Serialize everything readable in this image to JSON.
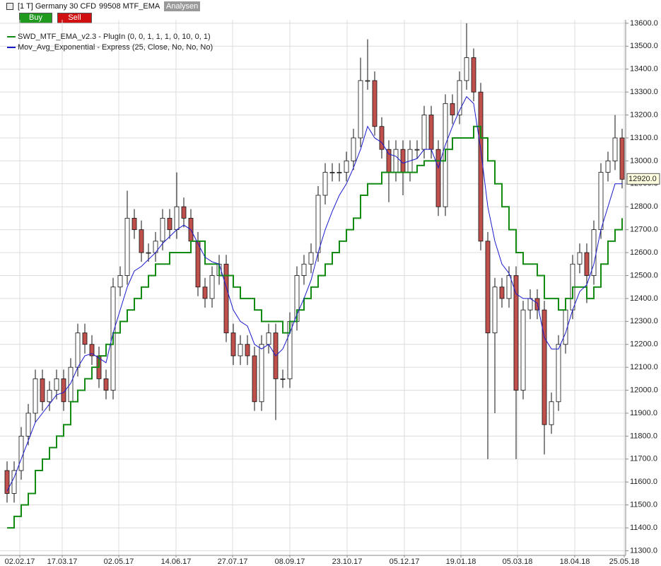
{
  "toolbar": {
    "instrument": "[1 T] Germany 30 CFD",
    "chart_name": "99508 MTF_EMA",
    "analysis": "Analysen",
    "buy": "Buy",
    "sell": "Sell"
  },
  "chart_data": {
    "type": "candlestick",
    "ylim": [
      11280,
      13615
    ],
    "xlim": [
      -1,
      87.5
    ],
    "yticks": [
      {
        "value": 11300,
        "label": "11300.0"
      },
      {
        "value": 11400,
        "label": "11400.0"
      },
      {
        "value": 11500,
        "label": "11500.0"
      },
      {
        "value": 11600,
        "label": "11600.0"
      },
      {
        "value": 11700,
        "label": "11700.0"
      },
      {
        "value": 11800,
        "label": "11800.0"
      },
      {
        "value": 11900,
        "label": "11900.0"
      },
      {
        "value": 12000,
        "label": "12000.0"
      },
      {
        "value": 12100,
        "label": "12100.0"
      },
      {
        "value": 12200,
        "label": "12200.0"
      },
      {
        "value": 12300,
        "label": "12300.0"
      },
      {
        "value": 12400,
        "label": "12400.0"
      },
      {
        "value": 12500,
        "label": "12500.0"
      },
      {
        "value": 12600,
        "label": "12600.0"
      },
      {
        "value": 12700,
        "label": "12700.0"
      },
      {
        "value": 12800,
        "label": "12800.0"
      },
      {
        "value": 12900,
        "label": "12900.0"
      },
      {
        "value": 13000,
        "label": "13000.0"
      },
      {
        "value": 13100,
        "label": "13100.0"
      },
      {
        "value": 13200,
        "label": "13200.0"
      },
      {
        "value": 13300,
        "label": "13300.0"
      },
      {
        "value": 13400,
        "label": "13400.0"
      },
      {
        "value": 13500,
        "label": "13500.0"
      },
      {
        "value": 13600,
        "label": "13600.0"
      }
    ],
    "xticks": [
      {
        "value": 1.8,
        "label": "02.02.17"
      },
      {
        "value": 7.8,
        "label": "17.03.17"
      },
      {
        "value": 15.8,
        "label": "02.05.17"
      },
      {
        "value": 23.9,
        "label": "14.06.17"
      },
      {
        "value": 31.9,
        "label": "27.07.17"
      },
      {
        "value": 40,
        "label": "08.09.17"
      },
      {
        "value": 48.1,
        "label": "23.10.17"
      },
      {
        "value": 56.2,
        "label": "05.12.17"
      },
      {
        "value": 64.2,
        "label": "19.01.18"
      },
      {
        "value": 72.2,
        "label": "05.03.18"
      },
      {
        "value": 80.3,
        "label": "18.04.18"
      },
      {
        "value": 87.3,
        "label": "25.05.18"
      }
    ],
    "grid": true,
    "ohlc": {
      "up_color": "#ffffff",
      "down_color": "#c0504d",
      "outline_color": "#111111",
      "open": [
        11650,
        11550,
        11650,
        11800,
        11900,
        12050,
        11950,
        12000,
        12050,
        11950,
        12100,
        12250,
        12200,
        12150,
        12050,
        12000,
        12450,
        12500,
        12750,
        12700,
        12600,
        12600,
        12650,
        12750,
        12700,
        12800,
        12750,
        12650,
        12450,
        12400,
        12500,
        12550,
        12250,
        12150,
        12200,
        12150,
        11950,
        12200,
        12250,
        12050,
        12050,
        12300,
        12500,
        12550,
        12600,
        12850,
        12950,
        12950,
        12950,
        13000,
        13100,
        13350,
        13350,
        13150,
        13050,
        12950,
        13050,
        12950,
        13050,
        13050,
        13200,
        13050,
        12800,
        13250,
        13200,
        13350,
        13450,
        13300,
        12650,
        12250,
        12450,
        12400,
        12500,
        12000,
        12350,
        12400,
        12350,
        11850,
        11950,
        12200,
        12350,
        12550,
        12600,
        12500,
        12700,
        12950,
        13000,
        13100
      ],
      "high": [
        11690,
        11690,
        11840,
        11940,
        12090,
        12090,
        12040,
        12090,
        12090,
        12140,
        12290,
        12290,
        12240,
        12190,
        12090,
        12490,
        12540,
        12870,
        12790,
        12740,
        12640,
        12690,
        12790,
        12790,
        12950,
        12840,
        12790,
        12690,
        12490,
        12540,
        12590,
        12590,
        12290,
        12240,
        12240,
        12190,
        12240,
        12290,
        12290,
        12090,
        12340,
        12540,
        12590,
        12640,
        12890,
        12990,
        12990,
        12990,
        13040,
        13140,
        13450,
        13530,
        13390,
        13190,
        13090,
        13090,
        13090,
        13090,
        13090,
        13240,
        13240,
        13090,
        13290,
        13290,
        13390,
        13600,
        13490,
        13340,
        12690,
        12490,
        12490,
        12540,
        12540,
        12390,
        12440,
        12440,
        12390,
        11990,
        12240,
        12390,
        12590,
        12640,
        12640,
        12740,
        12990,
        13040,
        13200,
        13140
      ],
      "low": [
        11510,
        11510,
        11610,
        11760,
        11860,
        11910,
        11910,
        11960,
        11910,
        11910,
        12060,
        12160,
        12110,
        12010,
        11960,
        11960,
        12410,
        12460,
        12660,
        12560,
        12560,
        12560,
        12610,
        12660,
        12660,
        12710,
        12610,
        12410,
        12360,
        12360,
        12460,
        12210,
        12110,
        12110,
        12110,
        11910,
        11910,
        12160,
        11870,
        12010,
        12010,
        12260,
        12460,
        12510,
        12560,
        12810,
        12910,
        12910,
        12910,
        12960,
        13060,
        13310,
        13110,
        13010,
        12820,
        12910,
        12850,
        12910,
        13010,
        13010,
        13010,
        12760,
        12760,
        13160,
        13160,
        13310,
        13260,
        12610,
        11700,
        11900,
        12360,
        12360,
        11700,
        11960,
        12310,
        12310,
        11720,
        11810,
        11910,
        12160,
        12310,
        12510,
        12380,
        12460,
        12660,
        12910,
        12960,
        12880
      ],
      "close": [
        11550,
        11650,
        11800,
        11900,
        12050,
        11950,
        12000,
        12050,
        11950,
        12100,
        12250,
        12200,
        12150,
        12050,
        12000,
        12450,
        12500,
        12750,
        12700,
        12600,
        12600,
        12650,
        12750,
        12700,
        12800,
        12750,
        12650,
        12450,
        12400,
        12500,
        12550,
        12250,
        12150,
        12200,
        12150,
        11950,
        12200,
        12250,
        12050,
        12050,
        12300,
        12500,
        12550,
        12600,
        12850,
        12950,
        12950,
        12950,
        13000,
        13100,
        13350,
        13350,
        13150,
        13050,
        12950,
        13050,
        12950,
        13050,
        13050,
        13200,
        13050,
        12800,
        13250,
        13200,
        13350,
        13450,
        13300,
        12650,
        12250,
        12450,
        12400,
        12500,
        12000,
        12350,
        12400,
        12350,
        11850,
        11950,
        12200,
        12350,
        12550,
        12600,
        12500,
        12700,
        12950,
        13000,
        13100,
        12920
      ]
    },
    "last_label": {
      "value": 12920,
      "label": "12920.0"
    },
    "series": [
      {
        "name": "SWD_MTF_EMA_v2.3 - PlugIn  (0, 0, 1, 1, 1, 0, 10, 0, 1)",
        "color": "#138a13",
        "step": true,
        "values": [
          11400,
          11450,
          11500,
          11550,
          11650,
          11700,
          11750,
          11800,
          11850,
          11950,
          12000,
          12050,
          12100,
          12150,
          12200,
          12250,
          12300,
          12350,
          12400,
          12450,
          12500,
          12550,
          12550,
          12600,
          12600,
          12600,
          12650,
          12650,
          12550,
          12550,
          12500,
          12500,
          12450,
          12400,
          12400,
          12350,
          12300,
          12300,
          12300,
          12250,
          12300,
          12350,
          12400,
          12450,
          12500,
          12550,
          12600,
          12650,
          12700,
          12750,
          12850,
          12900,
          12900,
          12950,
          12950,
          12950,
          12950,
          12950,
          12980,
          13000,
          13000,
          13000,
          13050,
          13100,
          13100,
          13100,
          13150,
          13100,
          13000,
          12900,
          12800,
          12700,
          12600,
          12550,
          12550,
          12500,
          12400,
          12400,
          12350,
          12400,
          12450,
          12450,
          12400,
          12450,
          12550,
          12650,
          12700,
          12750
        ]
      },
      {
        "name": "Mov_Avg_Exponential - Express  (25, Close, No, No, No)",
        "color": "#1a1acc",
        "step": false,
        "values": [
          11560,
          11620,
          11700,
          11780,
          11860,
          11900,
          11940,
          11980,
          11990,
          12030,
          12100,
          12150,
          12160,
          12140,
          12120,
          12250,
          12350,
          12450,
          12520,
          12540,
          12570,
          12600,
          12640,
          12670,
          12700,
          12720,
          12700,
          12640,
          12580,
          12560,
          12550,
          12450,
          12350,
          12300,
          12280,
          12200,
          12180,
          12200,
          12150,
          12180,
          12250,
          12330,
          12400,
          12480,
          12600,
          12700,
          12780,
          12850,
          12900,
          12970,
          13050,
          13150,
          13100,
          13080,
          13030,
          13020,
          12990,
          13000,
          13010,
          13050,
          13050,
          12970,
          13070,
          13150,
          13220,
          13280,
          13250,
          13050,
          12800,
          12650,
          12550,
          12510,
          12420,
          12400,
          12400,
          12380,
          12230,
          12180,
          12180,
          12250,
          12350,
          12430,
          12460,
          12550,
          12700,
          12800,
          12900,
          12900
        ]
      }
    ]
  }
}
